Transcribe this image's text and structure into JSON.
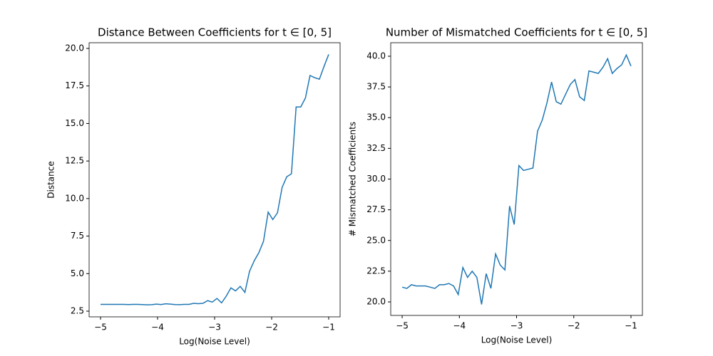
{
  "chart_data": [
    {
      "type": "line",
      "title": "Distance Between Coefficients for t ∈ [0, 5]",
      "xlabel": "Log(Noise Level)",
      "ylabel": "Distance",
      "color": "#1f77b4",
      "x": [
        -5,
        -4.918,
        -4.837,
        -4.755,
        -4.673,
        -4.592,
        -4.51,
        -4.429,
        -4.347,
        -4.265,
        -4.184,
        -4.102,
        -4.02,
        -3.939,
        -3.857,
        -3.776,
        -3.694,
        -3.612,
        -3.531,
        -3.449,
        -3.367,
        -3.286,
        -3.204,
        -3.122,
        -3.041,
        -2.959,
        -2.878,
        -2.796,
        -2.714,
        -2.633,
        -2.551,
        -2.469,
        -2.388,
        -2.306,
        -2.224,
        -2.143,
        -2.061,
        -1.98,
        -1.898,
        -1.816,
        -1.735,
        -1.653,
        -1.571,
        -1.49,
        -1.408,
        -1.327,
        -1.245,
        -1.163,
        -1.082,
        -1
      ],
      "values": [
        2.95,
        2.95,
        2.95,
        2.95,
        2.95,
        2.95,
        2.94,
        2.95,
        2.95,
        2.94,
        2.92,
        2.93,
        2.97,
        2.94,
        2.99,
        2.97,
        2.94,
        2.93,
        2.95,
        2.95,
        3.02,
        3.0,
        3.02,
        3.2,
        3.1,
        3.35,
        3.05,
        3.5,
        4.05,
        3.85,
        4.15,
        3.75,
        5.15,
        5.85,
        6.4,
        7.15,
        9.1,
        8.6,
        9.05,
        10.75,
        11.45,
        11.65,
        16.1,
        16.1,
        16.7,
        18.2,
        18.05,
        17.95,
        18.8,
        19.6
      ],
      "xlim": [
        -5.2,
        -0.8
      ],
      "ylim": [
        2.12,
        20.38
      ],
      "xticks": [
        {
          "value": -5,
          "label": "−5"
        },
        {
          "value": -4,
          "label": "−4"
        },
        {
          "value": -3,
          "label": "−3"
        },
        {
          "value": -2,
          "label": "−2"
        },
        {
          "value": -1,
          "label": "−1"
        }
      ],
      "yticks": [
        2.5,
        {
          "value": 5,
          "label": "5.0"
        },
        7.5,
        {
          "value": 10,
          "label": "10.0"
        },
        12.5,
        {
          "value": 15,
          "label": "15.0"
        },
        17.5,
        {
          "value": 20,
          "label": "20.0"
        }
      ]
    },
    {
      "type": "line",
      "title": "Number of Mismatched Coefficients for t ∈ [0, 5]",
      "xlabel": "Log(Noise Level)",
      "ylabel": "# Mismatched Coefficients",
      "color": "#1f77b4",
      "x": [
        -5,
        -4.918,
        -4.837,
        -4.755,
        -4.673,
        -4.592,
        -4.51,
        -4.429,
        -4.347,
        -4.265,
        -4.184,
        -4.102,
        -4.02,
        -3.939,
        -3.857,
        -3.776,
        -3.694,
        -3.612,
        -3.531,
        -3.449,
        -3.367,
        -3.286,
        -3.204,
        -3.122,
        -3.041,
        -2.959,
        -2.878,
        -2.796,
        -2.714,
        -2.633,
        -2.551,
        -2.469,
        -2.388,
        -2.306,
        -2.224,
        -2.143,
        -2.061,
        -1.98,
        -1.898,
        -1.816,
        -1.735,
        -1.653,
        -1.571,
        -1.49,
        -1.408,
        -1.327,
        -1.245,
        -1.163,
        -1.082,
        -1
      ],
      "values": [
        21.2,
        21.1,
        21.4,
        21.3,
        21.3,
        21.3,
        21.2,
        21.1,
        21.4,
        21.4,
        21.5,
        21.3,
        20.6,
        22.8,
        22.0,
        22.5,
        22.0,
        19.8,
        22.3,
        21.1,
        23.9,
        23.0,
        22.6,
        27.8,
        26.3,
        31.1,
        30.7,
        30.8,
        30.9,
        33.9,
        34.8,
        36.2,
        37.9,
        36.3,
        36.1,
        36.9,
        37.7,
        38.1,
        36.7,
        36.4,
        38.8,
        38.7,
        38.6,
        39.1,
        39.8,
        38.6,
        39.0,
        39.3,
        40.1,
        39.2
      ],
      "xlim": [
        -5.2,
        -0.8
      ],
      "ylim": [
        18.9,
        41.1
      ],
      "xticks": [
        {
          "value": -5,
          "label": "−5"
        },
        {
          "value": -4,
          "label": "−4"
        },
        {
          "value": -3,
          "label": "−3"
        },
        {
          "value": -2,
          "label": "−2"
        },
        {
          "value": -1,
          "label": "−1"
        }
      ],
      "yticks": [
        {
          "value": 20,
          "label": "20.0"
        },
        22.5,
        {
          "value": 25,
          "label": "25.0"
        },
        27.5,
        {
          "value": 30,
          "label": "30.0"
        },
        32.5,
        {
          "value": 35,
          "label": "35.0"
        },
        37.5,
        {
          "value": 40,
          "label": "40.0"
        }
      ]
    }
  ]
}
